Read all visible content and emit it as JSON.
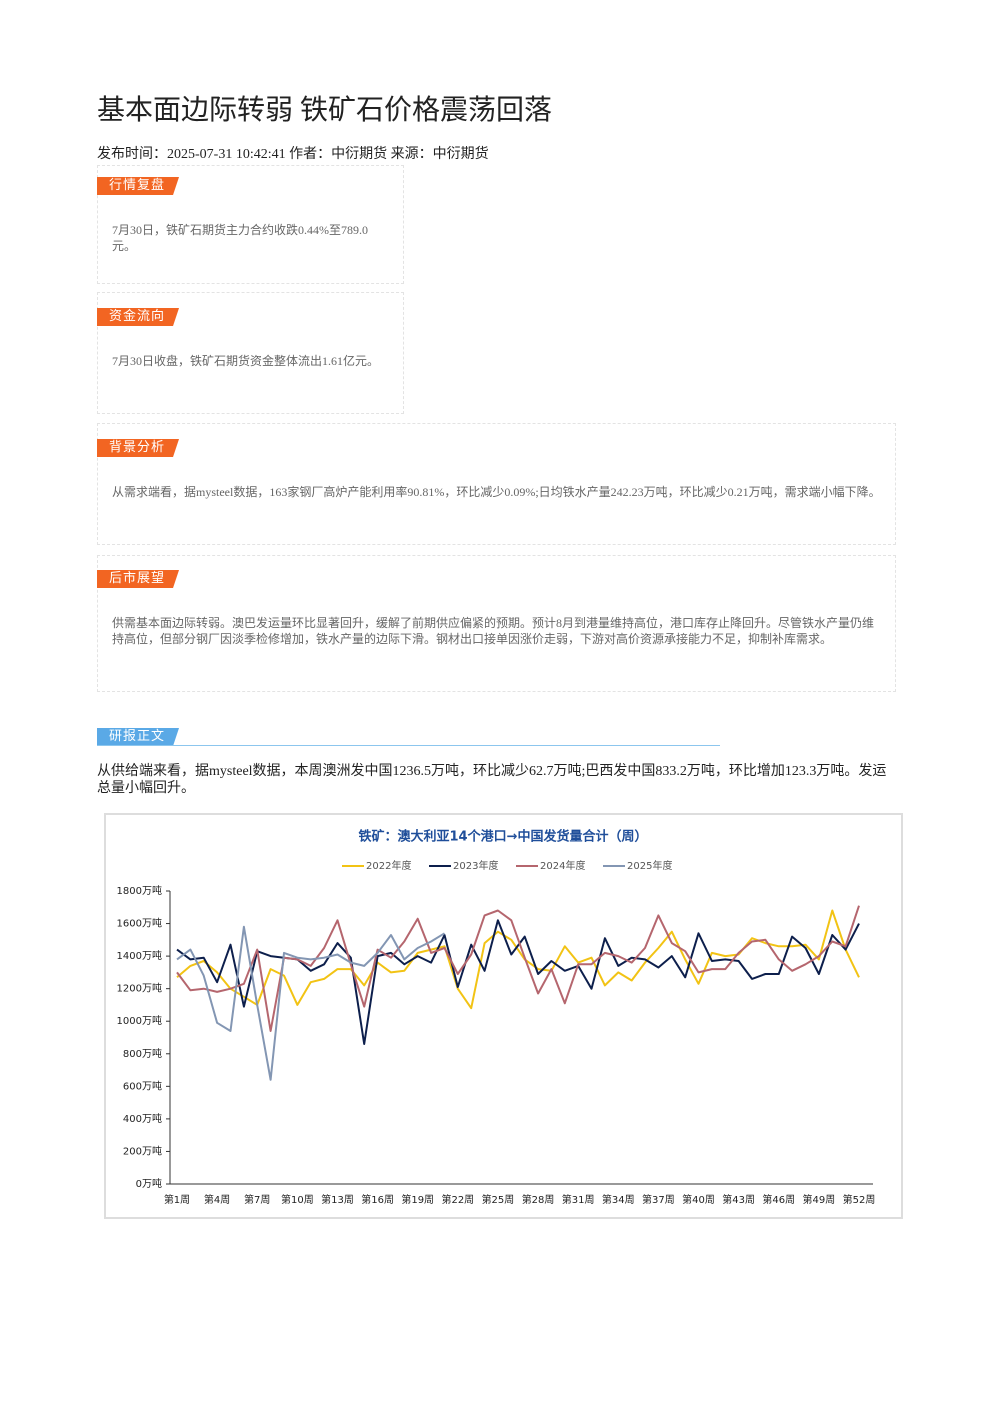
{
  "title": "基本面边际转弱 铁矿石价格震荡回落",
  "meta": "发布时间：2025-07-31 10:42:41 作者：中衍期货 来源：中衍期货",
  "sections": [
    {
      "tag": "行情复盘",
      "text": "7月30日，铁矿石期货主力合约收跌0.44%至789.0元。"
    },
    {
      "tag": "资金流向",
      "text": "7月30日收盘，铁矿石期货资金整体流出1.61亿元。"
    },
    {
      "tag": "背景分析",
      "text": "从需求端看，据mysteel数据，163家钢厂高炉产能利用率90.81%，环比减少0.09%;日均铁水产量242.23万吨，环比减少0.21万吨，需求端小幅下降。"
    },
    {
      "tag": "后市展望",
      "text": "供需基本面边际转弱。澳巴发运量环比显著回升，缓解了前期供应偏紧的预期。预计8月到港量维持高位，港口库存止降回升。尽管铁水产量仍维持高位，但部分钢厂因淡季检修增加，铁水产量的边际下滑。钢材出口接单因涨价走弱，下游对高价资源承接能力不足，抑制补库需求。"
    }
  ],
  "report": {
    "tag": "研报正文",
    "text": "从供给端来看，据mysteel数据，本周澳洲发中国1236.5万吨，环比减少62.7万吨;巴西发中国833.2万吨，环比增加123.3万吨。发运总量小幅回升。"
  },
  "chart_data": {
    "type": "line",
    "title": "铁矿：澳大利亚14个港口→中国发货量合计（周）",
    "categories": [
      "第1周",
      null,
      null,
      "第4周",
      null,
      null,
      "第7周",
      null,
      null,
      "第10周",
      null,
      null,
      "第13周",
      null,
      null,
      "第16周",
      null,
      null,
      "第19周",
      null,
      null,
      "第22周",
      null,
      null,
      "第25周",
      null,
      null,
      "第28周",
      null,
      null,
      "第31周",
      null,
      null,
      "第34周",
      null,
      null,
      "第37周",
      null,
      null,
      "第40周",
      null,
      null,
      "第43周",
      null,
      null,
      "第46周",
      null,
      null,
      "第49周",
      null,
      null,
      "第52周"
    ],
    "ylim": [
      0,
      1800
    ],
    "yticks": [
      {
        "value": 0,
        "label": "0万吨"
      },
      {
        "value": 200,
        "label": "200万吨"
      },
      {
        "value": 400,
        "label": "400万吨"
      },
      {
        "value": 600,
        "label": "600万吨"
      },
      {
        "value": 800,
        "label": "800万吨"
      },
      {
        "value": 1000,
        "label": "1000万吨"
      },
      {
        "value": 1200,
        "label": "1200万吨"
      },
      {
        "value": 1400,
        "label": "1400万吨"
      },
      {
        "value": 1600,
        "label": "1600万吨"
      },
      {
        "value": 1800,
        "label": "1800万吨"
      }
    ],
    "grid": false,
    "legend": "top",
    "series": [
      {
        "name": "2022年度",
        "color": "#f2c314",
        "values": [
          1270,
          1340,
          1370,
          1300,
          1200,
          1150,
          1100,
          1320,
          1280,
          1100,
          1240,
          1260,
          1320,
          1320,
          1220,
          1360,
          1300,
          1310,
          1420,
          1440,
          1460,
          1200,
          1080,
          1480,
          1550,
          1500,
          1380,
          1320,
          1310,
          1460,
          1360,
          1390,
          1220,
          1300,
          1250,
          1360,
          1450,
          1550,
          1380,
          1230,
          1420,
          1400,
          1410,
          1510,
          1480,
          1460,
          1460,
          1470,
          1380,
          1680,
          1440,
          1270
        ]
      },
      {
        "name": "2023年度",
        "color": "#0d1f4c",
        "values": [
          1440,
          1380,
          1390,
          1240,
          1470,
          1090,
          1430,
          1400,
          1390,
          1380,
          1310,
          1350,
          1480,
          1390,
          860,
          1400,
          1420,
          1350,
          1400,
          1360,
          1530,
          1210,
          1470,
          1310,
          1620,
          1410,
          1520,
          1290,
          1370,
          1310,
          1340,
          1200,
          1510,
          1340,
          1390,
          1380,
          1330,
          1400,
          1270,
          1540,
          1370,
          1380,
          1370,
          1260,
          1290,
          1290,
          1520,
          1450,
          1290,
          1530,
          1440,
          1600
        ]
      },
      {
        "name": "2024年度",
        "color": "#b5666e",
        "values": [
          1300,
          1190,
          1200,
          1180,
          1200,
          1230,
          1440,
          940,
          1390,
          1380,
          1340,
          1450,
          1620,
          1350,
          1090,
          1440,
          1390,
          1490,
          1630,
          1420,
          1450,
          1290,
          1410,
          1650,
          1680,
          1620,
          1390,
          1170,
          1320,
          1110,
          1350,
          1350,
          1420,
          1400,
          1360,
          1450,
          1650,
          1480,
          1430,
          1300,
          1320,
          1320,
          1420,
          1490,
          1500,
          1380,
          1310,
          1350,
          1400,
          1490,
          1460,
          1710
        ]
      },
      {
        "name": "2025年度",
        "color": "#8396b3",
        "values": [
          1380,
          1440,
          1280,
          990,
          940,
          1580,
          1100,
          640,
          1420,
          1390,
          1380,
          1390,
          1410,
          1360,
          1340,
          1420,
          1530,
          1380,
          1450,
          1490,
          1540,
          null,
          null,
          null,
          null,
          null,
          null,
          null,
          null,
          null,
          null,
          null,
          null,
          null,
          null,
          null,
          null,
          null,
          null,
          null,
          null,
          null,
          null,
          null,
          null,
          null,
          null,
          null,
          null,
          null,
          null,
          null
        ]
      }
    ]
  }
}
